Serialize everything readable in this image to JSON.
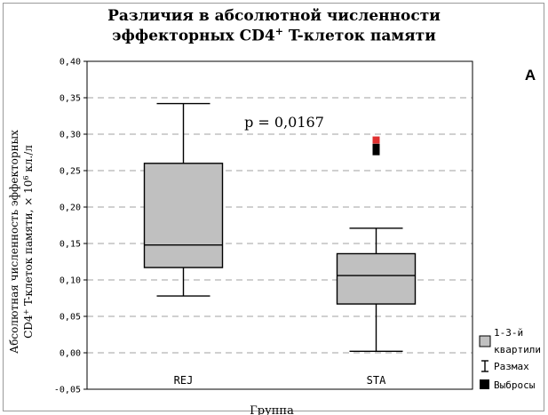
{
  "chart_data": {
    "type": "boxplot",
    "title_line1": "Различия в абсолютной численности",
    "title_line2": "эффекторных CD4",
    "title_sup": "+",
    "title_line2_rest": " T-клеток памяти",
    "ylabel_line1": "Абсолютная численность эффекторных",
    "ylabel_line2": "CD4",
    "ylabel_sup1": "+",
    "ylabel_line2_mid": " T-клеток памяти, × 10",
    "ylabel_sup2": "6",
    "ylabel_line2_end": " кл./л",
    "xlabel": "Группа",
    "panel_label": "A",
    "annotation": "p = 0,0167",
    "ylim": [
      -0.05,
      0.4
    ],
    "yticks": [
      "-0,05",
      "0,00",
      "0,05",
      "0,10",
      "0,15",
      "0,20",
      "0,25",
      "0,30",
      "0,35",
      "0,40"
    ],
    "ytick_values": [
      -0.05,
      0.0,
      0.05,
      0.1,
      0.15,
      0.2,
      0.25,
      0.3,
      0.35,
      0.4
    ],
    "grid": true,
    "categories": [
      "REJ",
      "STA"
    ],
    "boxes": [
      {
        "category": "REJ",
        "whisker_low": 0.078,
        "q1": 0.117,
        "median": 0.148,
        "q3": 0.26,
        "whisker_high": 0.342,
        "outliers": []
      },
      {
        "category": "STA",
        "whisker_low": 0.002,
        "q1": 0.067,
        "median": 0.106,
        "q3": 0.136,
        "whisker_high": 0.171,
        "outliers": [
          0.276,
          0.282,
          0.292
        ]
      }
    ],
    "legend": {
      "position": "right",
      "items": [
        {
          "label_line1": "1-3-й",
          "label_line2": "квартили",
          "marker": "box"
        },
        {
          "label_line1": "Размах",
          "label_line2": "",
          "marker": "whisker"
        },
        {
          "label_line1": "Выбросы",
          "label_line2": "",
          "marker": "outlier"
        }
      ]
    },
    "colors": {
      "box": "#c0c0c0",
      "outlier": "#000000",
      "outlier_highlight": "#e03030",
      "grid": "#a0a0a0"
    }
  }
}
